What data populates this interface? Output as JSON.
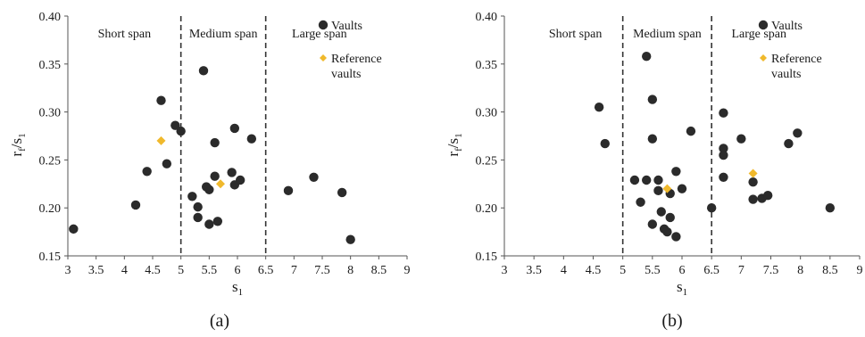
{
  "chart_data": [
    {
      "type": "scatter",
      "panel_label": "(a)",
      "xlabel": "s",
      "xlabel_sub": "1",
      "ylabel": "r",
      "ylabel_sub1": "f",
      "ylabel_mid": "/s",
      "ylabel_sub2": "1",
      "xlim": [
        3,
        9
      ],
      "ylim": [
        0.15,
        0.4
      ],
      "xticks": [
        "3",
        "3.5",
        "4",
        "4.5",
        "5",
        "5.5",
        "6",
        "6.5",
        "7",
        "7.5",
        "8",
        "8.5",
        "9"
      ],
      "yticks": [
        "0.15",
        "0.20",
        "0.25",
        "0.30",
        "0.35",
        "0.40"
      ],
      "dividers": [
        5,
        6.5
      ],
      "region_labels": [
        {
          "text": "Short span",
          "x": 4.0
        },
        {
          "text": "Medium span",
          "x": 5.75
        },
        {
          "text": "Large span",
          "x": 7.45
        }
      ],
      "legend": {
        "placement": "top-right",
        "entries": [
          {
            "label": "Vaults",
            "marker": "circle"
          },
          {
            "label": "Reference\nvaults",
            "marker": "diamond"
          }
        ]
      },
      "colors": {
        "vaults": "#2b2b2b",
        "reference": "#f0b92c"
      },
      "series": [
        {
          "name": "Vaults",
          "points": [
            [
              3.1,
              0.178
            ],
            [
              4.2,
              0.203
            ],
            [
              4.4,
              0.238
            ],
            [
              4.65,
              0.312
            ],
            [
              4.75,
              0.246
            ],
            [
              4.9,
              0.286
            ],
            [
              5.0,
              0.28
            ],
            [
              5.2,
              0.212
            ],
            [
              5.3,
              0.201
            ],
            [
              5.3,
              0.19
            ],
            [
              5.4,
              0.343
            ],
            [
              5.45,
              0.222
            ],
            [
              5.5,
              0.219
            ],
            [
              5.5,
              0.183
            ],
            [
              5.6,
              0.268
            ],
            [
              5.6,
              0.233
            ],
            [
              5.65,
              0.186
            ],
            [
              5.9,
              0.237
            ],
            [
              5.95,
              0.283
            ],
            [
              5.95,
              0.224
            ],
            [
              6.05,
              0.229
            ],
            [
              6.25,
              0.272
            ],
            [
              6.9,
              0.218
            ],
            [
              7.35,
              0.232
            ],
            [
              7.85,
              0.216
            ],
            [
              8.0,
              0.167
            ]
          ]
        },
        {
          "name": "Reference vaults",
          "points": [
            [
              4.65,
              0.27
            ],
            [
              5.7,
              0.225
            ]
          ]
        }
      ]
    },
    {
      "type": "scatter",
      "panel_label": "(b)",
      "xlabel": "s",
      "xlabel_sub": "1",
      "ylabel": "r",
      "ylabel_sub1": "f",
      "ylabel_mid": "/s",
      "ylabel_sub2": "1",
      "xlim": [
        3,
        9
      ],
      "ylim": [
        0.15,
        0.4
      ],
      "xticks": [
        "3",
        "3.5",
        "4",
        "4.5",
        "5",
        "5.5",
        "6",
        "6.5",
        "7",
        "7.5",
        "8",
        "8.5",
        "9"
      ],
      "yticks": [
        "0.15",
        "0.20",
        "0.25",
        "0.30",
        "0.35",
        "0.40"
      ],
      "dividers": [
        5,
        6.5
      ],
      "region_labels": [
        {
          "text": "Short span",
          "x": 4.2
        },
        {
          "text": "Medium span",
          "x": 5.75
        },
        {
          "text": "Large span",
          "x": 7.3
        }
      ],
      "legend": {
        "placement": "top-right",
        "entries": [
          {
            "label": "Vaults",
            "marker": "circle"
          },
          {
            "label": "Reference\nvaults",
            "marker": "diamond"
          }
        ]
      },
      "colors": {
        "vaults": "#2b2b2b",
        "reference": "#f0b92c"
      },
      "series": [
        {
          "name": "Vaults",
          "points": [
            [
              4.6,
              0.305
            ],
            [
              4.7,
              0.267
            ],
            [
              5.2,
              0.229
            ],
            [
              5.3,
              0.206
            ],
            [
              5.4,
              0.358
            ],
            [
              5.4,
              0.229
            ],
            [
              5.5,
              0.313
            ],
            [
              5.5,
              0.272
            ],
            [
              5.5,
              0.183
            ],
            [
              5.6,
              0.229
            ],
            [
              5.6,
              0.218
            ],
            [
              5.65,
              0.196
            ],
            [
              5.7,
              0.178
            ],
            [
              5.75,
              0.175
            ],
            [
              5.8,
              0.215
            ],
            [
              5.8,
              0.19
            ],
            [
              5.9,
              0.238
            ],
            [
              5.9,
              0.17
            ],
            [
              6.0,
              0.22
            ],
            [
              6.15,
              0.28
            ],
            [
              6.5,
              0.2
            ],
            [
              6.7,
              0.299
            ],
            [
              6.7,
              0.262
            ],
            [
              6.7,
              0.255
            ],
            [
              6.7,
              0.232
            ],
            [
              7.0,
              0.272
            ],
            [
              7.2,
              0.227
            ],
            [
              7.2,
              0.209
            ],
            [
              7.35,
              0.21
            ],
            [
              7.45,
              0.213
            ],
            [
              7.8,
              0.267
            ],
            [
              7.95,
              0.278
            ],
            [
              8.5,
              0.2
            ]
          ]
        },
        {
          "name": "Reference vaults",
          "points": [
            [
              5.75,
              0.22
            ],
            [
              7.2,
              0.236
            ]
          ]
        }
      ]
    }
  ]
}
